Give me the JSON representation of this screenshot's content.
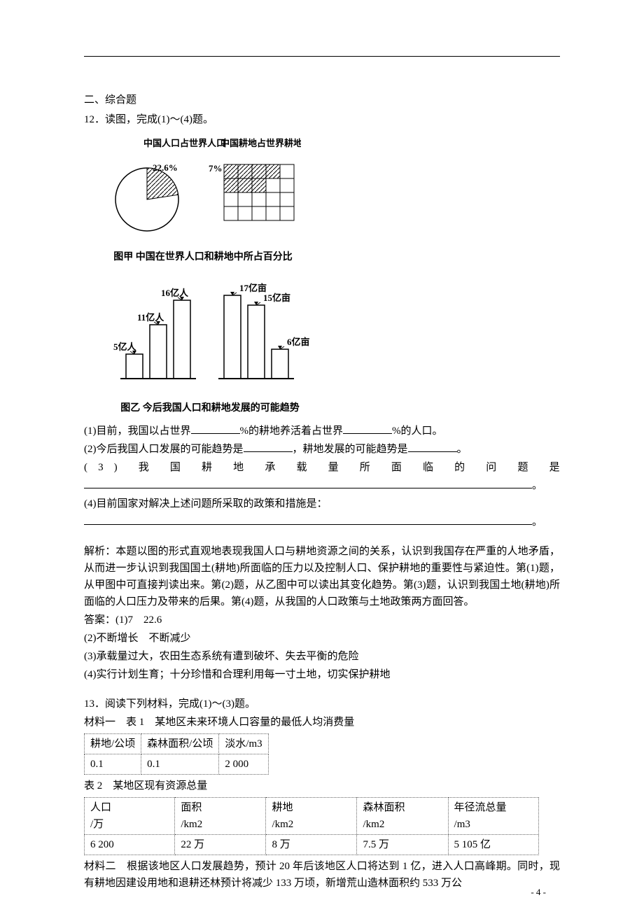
{
  "section_header": "二、综合题",
  "q12": {
    "prompt": "12．读图，完成(1)～(4)题。",
    "chart1": {
      "title_left": "中国人口占世界人口",
      "title_right": "中国耕地占世界耕地",
      "pie": {
        "value_label": "22.6%",
        "slice_pct": 22.6,
        "fill": "#bfbfbf",
        "bg": "#ffffff",
        "stroke": "#000000"
      },
      "bar_grid": {
        "value_label": "7%",
        "filled_cells": 7,
        "rows": 4,
        "cols": 5,
        "fill": "#bfbfbf",
        "stroke": "#000000",
        "cell": 20
      },
      "caption": "图甲  中国在世界人口和耕地中所占百分比"
    },
    "chart2": {
      "left_bars": {
        "labels": [
          "5亿人",
          "11亿人",
          "16亿人"
        ],
        "values": [
          5,
          11,
          16
        ],
        "ymax": 18
      },
      "right_bars": {
        "labels": [
          "17亿亩",
          "15亿亩",
          "6亿亩"
        ],
        "values": [
          17,
          15,
          6
        ],
        "ymax": 18
      },
      "bar_fill": "#ffffff",
      "bar_stroke": "#000000",
      "arrow_stroke": "#000000",
      "caption": "图乙  今后我国人口和耕地发展的可能趋势"
    },
    "sub1_a": "(1)目前，我国以占世界",
    "sub1_b": "%的耕地养活着占世界",
    "sub1_c": "%的人口。",
    "sub2_a": "(2)今后我国人口发展的可能趋势是",
    "sub2_b": "，耕地发展的可能趋势是",
    "sub2_c": "。",
    "sub3": "(3) 我 国 耕 地 承 载 量 所 面 临 的 问 题 是",
    "sub3_end": "。",
    "sub4": "(4)目前国家对解决上述问题所采取的政策和措施是：",
    "sub4_end": "。",
    "explain": "解析：本题以图的形式直观地表现我国人口与耕地资源之间的关系，认识到我国存在严重的人地矛盾，从而进一步认识到我国国土(耕地)所面临的压力以及控制人口、保护耕地的重要性与紧迫性。第(1)题，从甲图中可直接判读出来。第(2)题，从乙图中可以读出其变化趋势。第(3)题，认识到我国土地(耕地)所面临的人口压力及带来的后果。第(4)题，从我国的人口政策与土地政策两方面回答。",
    "answers_label": "答案：(1)7　22.6",
    "ans2": "(2)不断增长　不断减少",
    "ans3": "(3)承载量过大，农田生态系统有遭到破坏、失去平衡的危险",
    "ans4": "(4)实行计划生育；十分珍惜和合理利用每一寸土地，切实保护耕地"
  },
  "q13": {
    "prompt": "13．阅读下列材料，完成(1)～(3)题。",
    "mat1_label": "材料一　表 1　某地区未来环境人口容量的最低人均消费量",
    "table1": {
      "columns": [
        "耕地/公顷",
        "森林面积/公顷",
        "淡水/m3"
      ],
      "rows": [
        [
          "0.1",
          "0.1",
          "2 000"
        ]
      ]
    },
    "table2_label": "表 2　某地区现有资源总量",
    "table2": {
      "columns": [
        "人口\n/万",
        "面积\n/km2",
        "耕地\n/km2",
        "森林面积\n/km2",
        "年径流总量\n/m3"
      ],
      "rows": [
        [
          "6 200",
          "22 万",
          "8 万",
          "7.5 万",
          "5 105 亿"
        ]
      ]
    },
    "mat2": "材料二　根据该地区人口发展趋势，预计 20 年后该地区人口将达到 1 亿，进入人口高峰期。同时，现有耕地因建设用地和退耕还林预计将减少 133 万顷，新增荒山造林面积约 533 万公"
  },
  "page_number": "- 4 -"
}
